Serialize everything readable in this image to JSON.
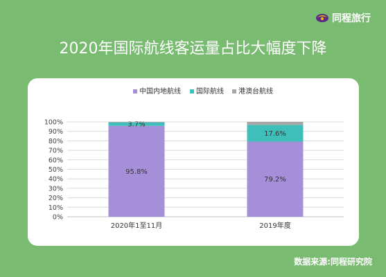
{
  "brand": {
    "name": "同程旅行",
    "icon": "tongcheng-logo-icon"
  },
  "header": {
    "title": "2020年国际航线客运量占比大幅度下降"
  },
  "footer": {
    "source": "数据来源:同程研究院"
  },
  "colors": {
    "background": "#79bb71",
    "card": "#ffffff",
    "series": [
      "#a68fd9",
      "#3fbfba",
      "#a6a6a6"
    ]
  },
  "chart_data": {
    "type": "bar",
    "stacked": true,
    "title": "2020年国际航线客运量占比大幅度下降",
    "categories": [
      "2020年1至11月",
      "2019年度"
    ],
    "series": [
      {
        "name": "中国内地航线",
        "values": [
          95.8,
          79.2
        ],
        "labels": [
          "95.8%",
          "79.2%"
        ],
        "color": "#a68fd9"
      },
      {
        "name": "国际航线",
        "values": [
          3.7,
          17.6
        ],
        "labels": [
          "3.7%",
          "17.6%"
        ],
        "color": "#3fbfba"
      },
      {
        "name": "港澳台航线",
        "values": [
          0.5,
          3.2
        ],
        "labels": [
          "",
          ""
        ],
        "color": "#a6a6a6"
      }
    ],
    "ylim": [
      0,
      100
    ],
    "yticks": [
      "0%",
      "10%",
      "20%",
      "30%",
      "40%",
      "50%",
      "60%",
      "70%",
      "80%",
      "90%",
      "100%"
    ],
    "grid": true,
    "legend": "top-center"
  }
}
